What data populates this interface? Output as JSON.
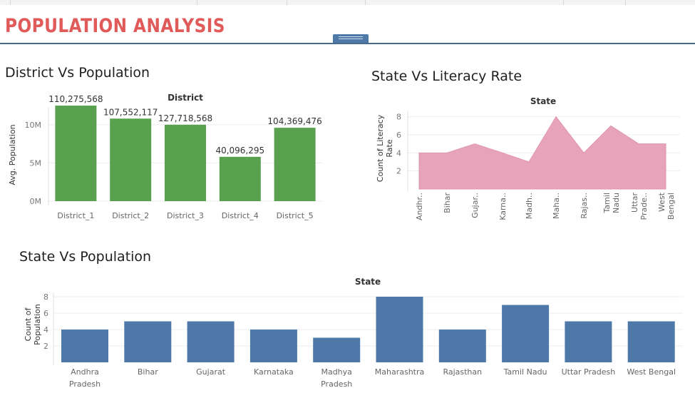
{
  "dashboard": {
    "title": "POPULATION ANALYSIS",
    "colors": {
      "title": "#e05a5a",
      "divider": "#4b6a8a"
    }
  },
  "district_section": {
    "title": "District Vs Population"
  },
  "literacy_section": {
    "title": "State Vs Literacy Rate"
  },
  "state_section": {
    "title": "State Vs Population"
  },
  "chart_data": [
    {
      "type": "bar",
      "title": "District Vs Population",
      "header": "District",
      "ylabel": "Avg. Population",
      "categories": [
        "District_1",
        "District_2",
        "District_3",
        "District_4",
        "District_5"
      ],
      "values": [
        110275568,
        107552117,
        127718568,
        40096295,
        104369476
      ],
      "bar_heights": [
        12.5,
        10.8,
        10.0,
        5.8,
        9.6
      ],
      "data_labels": [
        "110,275,568",
        "107,552,117",
        "127,718,568",
        "40,096,295",
        "104,369,476"
      ],
      "yticks": [
        "0M",
        "5M",
        "10M"
      ],
      "ylim": [
        0,
        14
      ],
      "color": "#59a14f"
    },
    {
      "type": "area",
      "title": "State Vs Literacy Rate",
      "header": "State",
      "ylabel": "Count of Literacy Rate",
      "categories": [
        "Andhr..",
        "Bihar",
        "Gujar..",
        "Karna..",
        "Madh..",
        "Maha..",
        "Rajas..",
        "Tamil Nadu",
        "Uttar Prade..",
        "West Bengal"
      ],
      "values": [
        4,
        4,
        5,
        4,
        3,
        8,
        4,
        7,
        5,
        5
      ],
      "yticks": [
        "2",
        "4",
        "6",
        "8"
      ],
      "ylim": [
        0,
        9
      ],
      "color": "#e7a3ba"
    },
    {
      "type": "bar",
      "title": "State Vs Population",
      "header": "State",
      "ylabel": "Count of Population",
      "categories": [
        "Andhra Pradesh",
        "Bihar",
        "Gujarat",
        "Karnataka",
        "Madhya Pradesh",
        "Maharashtra",
        "Rajasthan",
        "Tamil Nadu",
        "Uttar Pradesh",
        "West Bengal"
      ],
      "values": [
        4,
        5,
        5,
        4,
        3,
        8,
        4,
        7,
        5,
        5
      ],
      "yticks": [
        "2",
        "4",
        "6",
        "8"
      ],
      "ylim": [
        0,
        8
      ],
      "color": "#4e78a7"
    }
  ]
}
